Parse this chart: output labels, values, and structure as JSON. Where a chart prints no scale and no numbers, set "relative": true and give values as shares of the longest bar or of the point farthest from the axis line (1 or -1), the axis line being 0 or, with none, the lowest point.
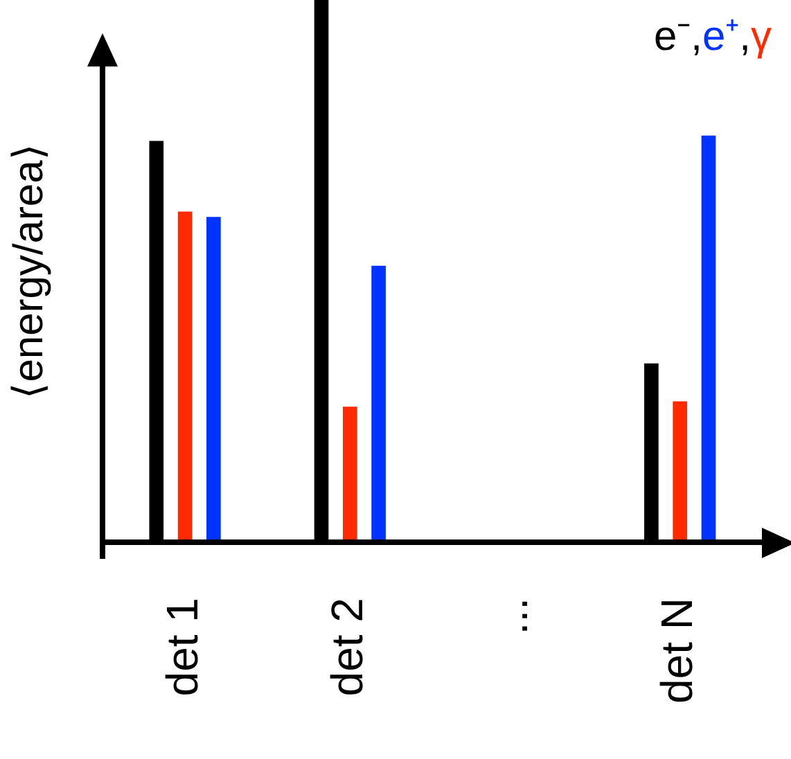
{
  "chart_data": {
    "type": "bar",
    "relative": true,
    "ylabel": "⟨energy/area⟩",
    "categories": [
      "det 1",
      "det 2",
      "...",
      "det N"
    ],
    "series": [
      {
        "name": "e⁻",
        "color": "#000000",
        "values": [
          0.74,
          1,
          null,
          0.33
        ]
      },
      {
        "name": "e⁺",
        "color": "#0033ff",
        "values": [
          0.6,
          0.51,
          null,
          0.75
        ]
      },
      {
        "name": "γ",
        "color": "#ff2a00",
        "values": [
          0.61,
          0.25,
          null,
          0.26
        ]
      }
    ],
    "annotations": [
      ",",
      ","
    ],
    "legend": "top right",
    "grid": false
  }
}
